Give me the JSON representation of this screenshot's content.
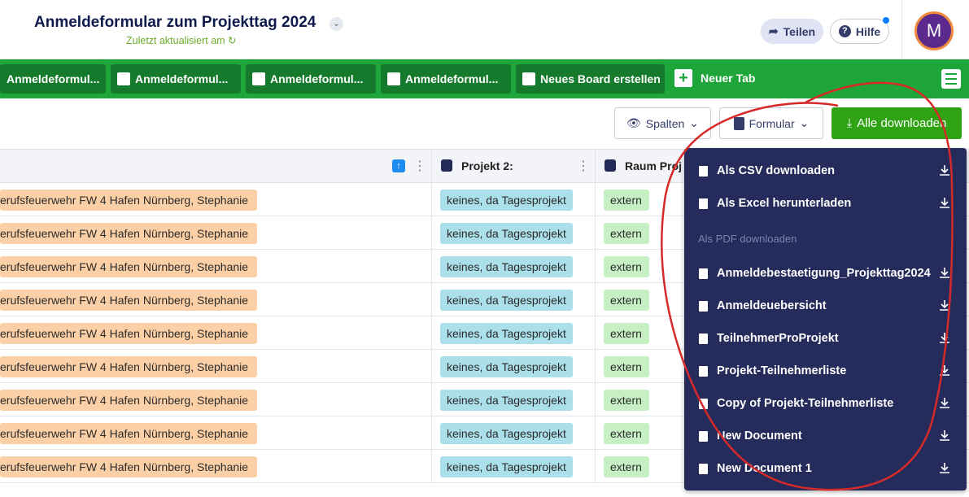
{
  "header": {
    "title": "Anmeldeformular zum Projekttag 2024",
    "subtitle": "Zuletzt aktualisiert am",
    "share": "Teilen",
    "help": "Hilfe",
    "avatar": "M"
  },
  "tabs": [
    "Anmeldeformul...",
    "Anmeldeformul...",
    "Anmeldeformul...",
    "Anmeldeformul...",
    "Neues Board erstellen"
  ],
  "new_tab": "Neuer Tab",
  "toolbar": {
    "columns": "Spalten",
    "form": "Formular",
    "download_all": "Alle downloaden"
  },
  "table": {
    "columns": [
      "Projekt 2:",
      "Raum Proj"
    ],
    "rows": [
      [
        "erufsfeuerwehr FW 4 Hafen Nürnberg, Stephanie",
        "keines, da Tagesprojekt",
        "extern"
      ],
      [
        "erufsfeuerwehr FW 4 Hafen Nürnberg, Stephanie",
        "keines, da Tagesprojekt",
        "extern"
      ],
      [
        "erufsfeuerwehr FW 4 Hafen Nürnberg, Stephanie",
        "keines, da Tagesprojekt",
        "extern"
      ],
      [
        "erufsfeuerwehr FW 4 Hafen Nürnberg, Stephanie",
        "keines, da Tagesprojekt",
        "extern"
      ],
      [
        "erufsfeuerwehr FW 4 Hafen Nürnberg, Stephanie",
        "keines, da Tagesprojekt",
        "extern"
      ],
      [
        "erufsfeuerwehr FW 4 Hafen Nürnberg, Stephanie",
        "keines, da Tagesprojekt",
        "extern"
      ],
      [
        "erufsfeuerwehr FW 4 Hafen Nürnberg, Stephanie",
        "keines, da Tagesprojekt",
        "extern"
      ],
      [
        "erufsfeuerwehr FW 4 Hafen Nürnberg, Stephanie",
        "keines, da Tagesprojekt",
        "extern"
      ],
      [
        "erufsfeuerwehr FW 4 Hafen Nürnberg, Stephanie",
        "keines, da Tagesprojekt",
        "extern"
      ]
    ]
  },
  "menu": {
    "items": [
      "Als CSV downloaden",
      "Als Excel herunterladen"
    ],
    "section": "Als PDF downloaden",
    "pdf_items": [
      "Anmeldebestaetigung_Projekttag2024",
      "Anmeldeuebersicht",
      "TeilnehmerProProjekt",
      "Projekt-Teilnehmerliste",
      "Copy of Projekt-Teilnehmerliste",
      "New Document",
      "New Document 1"
    ]
  }
}
